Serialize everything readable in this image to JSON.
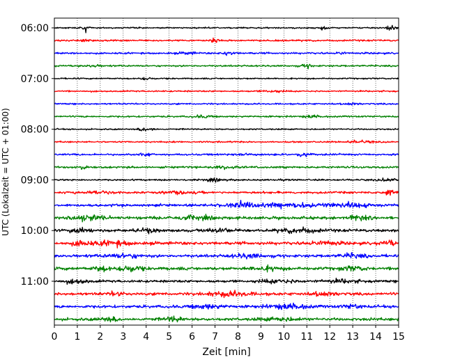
{
  "chart_data": {
    "type": "line",
    "title": "",
    "xlabel": "Zeit  [min]",
    "ylabel": "UTC (Lokalzeit = UTC + 01:00)",
    "xlim": [
      0,
      15
    ],
    "xticks": [
      0,
      1,
      2,
      3,
      4,
      5,
      6,
      7,
      8,
      9,
      10,
      11,
      12,
      13,
      14,
      15
    ],
    "x_tick_labels": [
      "0",
      "1",
      "2",
      "3",
      "4",
      "5",
      "6",
      "7",
      "8",
      "9",
      "10",
      "11",
      "12",
      "13",
      "14",
      "15"
    ],
    "row_interval_minutes": 15,
    "first_row_time": "06:00",
    "y_tick_labels": [
      {
        "row": 0,
        "label": "06:00"
      },
      {
        "row": 4,
        "label": "07:00"
      },
      {
        "row": 8,
        "label": "08:00"
      },
      {
        "row": 12,
        "label": "09:00"
      },
      {
        "row": 16,
        "label": "10:00"
      },
      {
        "row": 20,
        "label": "11:00"
      }
    ],
    "grid": {
      "x": true,
      "y": false,
      "style": "dotted"
    },
    "color_cycle": [
      "#000000",
      "#ff0000",
      "#0000ff",
      "#008000"
    ],
    "series": [
      {
        "row": 0,
        "color": "#000000",
        "base": 1.0,
        "events": [
          {
            "x": 1.35,
            "amp": 5.0,
            "w": 0.12
          },
          {
            "x": 14.6,
            "amp": 3.0,
            "w": 0.2
          },
          {
            "x": 11.6,
            "amp": 2.0,
            "w": 0.3
          }
        ]
      },
      {
        "row": 1,
        "color": "#ff0000",
        "base": 1.2,
        "events": [
          {
            "x": 7.0,
            "amp": 2.5,
            "w": 0.25
          },
          {
            "x": 1.3,
            "amp": 2.0,
            "w": 0.15
          }
        ]
      },
      {
        "row": 2,
        "color": "#0000ff",
        "base": 1.3,
        "events": [
          {
            "x": 7.6,
            "amp": 2.6,
            "w": 0.25
          },
          {
            "x": 12.5,
            "amp": 2.0,
            "w": 0.15
          },
          {
            "x": 5.8,
            "amp": 1.6,
            "w": 0.3
          }
        ]
      },
      {
        "row": 3,
        "color": "#008000",
        "base": 1.2,
        "events": [
          {
            "x": 11.0,
            "amp": 2.2,
            "w": 0.25
          },
          {
            "x": 1.7,
            "amp": 1.5,
            "w": 0.3
          }
        ]
      },
      {
        "row": 4,
        "color": "#000000",
        "base": 1.0,
        "events": [
          {
            "x": 4.0,
            "amp": 1.6,
            "w": 0.3
          }
        ]
      },
      {
        "row": 5,
        "color": "#ff0000",
        "base": 1.1,
        "events": [
          {
            "x": 9.5,
            "amp": 1.5,
            "w": 0.4
          }
        ]
      },
      {
        "row": 6,
        "color": "#0000ff",
        "base": 1.1,
        "events": [
          {
            "x": 13.0,
            "amp": 1.5,
            "w": 0.3
          }
        ]
      },
      {
        "row": 7,
        "color": "#008000",
        "base": 1.2,
        "events": [
          {
            "x": 6.5,
            "amp": 1.6,
            "w": 0.4
          },
          {
            "x": 11.2,
            "amp": 1.6,
            "w": 0.3
          }
        ]
      },
      {
        "row": 8,
        "color": "#000000",
        "base": 1.0,
        "events": [
          {
            "x": 3.9,
            "amp": 3.0,
            "w": 0.2
          },
          {
            "x": 4.3,
            "amp": 2.5,
            "w": 0.12
          }
        ]
      },
      {
        "row": 9,
        "color": "#ff0000",
        "base": 1.1,
        "events": [
          {
            "x": 13.3,
            "amp": 1.8,
            "w": 0.5
          }
        ]
      },
      {
        "row": 10,
        "color": "#0000ff",
        "base": 1.3,
        "events": [
          {
            "x": 4.0,
            "amp": 2.2,
            "w": 0.25
          },
          {
            "x": 10.8,
            "amp": 2.6,
            "w": 0.3
          },
          {
            "x": 8.5,
            "amp": 1.5,
            "w": 0.5
          }
        ]
      },
      {
        "row": 11,
        "color": "#008000",
        "base": 1.4,
        "events": [
          {
            "x": 1.2,
            "amp": 2.2,
            "w": 0.3
          },
          {
            "x": 7.5,
            "amp": 1.6,
            "w": 0.6
          }
        ]
      },
      {
        "row": 12,
        "color": "#000000",
        "base": 1.2,
        "events": [
          {
            "x": 14.5,
            "amp": 2.4,
            "w": 0.25
          },
          {
            "x": 7.0,
            "amp": 1.6,
            "w": 0.5
          }
        ]
      },
      {
        "row": 13,
        "color": "#ff0000",
        "base": 1.6,
        "events": [
          {
            "x": 14.6,
            "amp": 2.8,
            "w": 0.25
          },
          {
            "x": 5.5,
            "amp": 1.8,
            "w": 0.6
          },
          {
            "x": 2.0,
            "amp": 1.6,
            "w": 0.6
          }
        ]
      },
      {
        "row": 14,
        "color": "#0000ff",
        "base": 1.8,
        "events": [
          {
            "x": 8.2,
            "amp": 3.4,
            "w": 0.7
          },
          {
            "x": 10.5,
            "amp": 2.8,
            "w": 1.4
          },
          {
            "x": 13.0,
            "amp": 2.6,
            "w": 0.8
          }
        ]
      },
      {
        "row": 15,
        "color": "#008000",
        "base": 2.0,
        "events": [
          {
            "x": 1.4,
            "amp": 3.0,
            "w": 0.8
          },
          {
            "x": 13.2,
            "amp": 3.0,
            "w": 0.5
          },
          {
            "x": 6.0,
            "amp": 2.0,
            "w": 1.0
          }
        ]
      },
      {
        "row": 16,
        "color": "#000000",
        "base": 2.0,
        "events": [
          {
            "x": 1.2,
            "amp": 2.6,
            "w": 0.5
          },
          {
            "x": 4.1,
            "amp": 2.6,
            "w": 0.4
          },
          {
            "x": 10.7,
            "amp": 3.0,
            "w": 0.8
          },
          {
            "x": 7.2,
            "amp": 2.2,
            "w": 0.6
          }
        ]
      },
      {
        "row": 17,
        "color": "#ff0000",
        "base": 2.2,
        "events": [
          {
            "x": 1.2,
            "amp": 3.6,
            "w": 0.4
          },
          {
            "x": 2.6,
            "amp": 3.2,
            "w": 0.7
          },
          {
            "x": 14.6,
            "amp": 2.8,
            "w": 0.3
          },
          {
            "x": 11.8,
            "amp": 2.2,
            "w": 0.6
          }
        ]
      },
      {
        "row": 18,
        "color": "#0000ff",
        "base": 2.0,
        "events": [
          {
            "x": 3.0,
            "amp": 2.4,
            "w": 0.8
          },
          {
            "x": 8.4,
            "amp": 2.4,
            "w": 0.7
          },
          {
            "x": 13.0,
            "amp": 2.2,
            "w": 0.6
          }
        ]
      },
      {
        "row": 19,
        "color": "#008000",
        "base": 2.2,
        "events": [
          {
            "x": 3.3,
            "amp": 3.8,
            "w": 0.5
          },
          {
            "x": 2.1,
            "amp": 2.6,
            "w": 0.4
          },
          {
            "x": 9.2,
            "amp": 2.6,
            "w": 0.6
          },
          {
            "x": 13.0,
            "amp": 2.4,
            "w": 0.5
          }
        ]
      },
      {
        "row": 20,
        "color": "#000000",
        "base": 1.8,
        "events": [
          {
            "x": 1.0,
            "amp": 2.6,
            "w": 0.5
          },
          {
            "x": 9.8,
            "amp": 2.2,
            "w": 0.8
          },
          {
            "x": 12.5,
            "amp": 2.0,
            "w": 0.8
          }
        ]
      },
      {
        "row": 21,
        "color": "#ff0000",
        "base": 2.0,
        "events": [
          {
            "x": 7.6,
            "amp": 3.2,
            "w": 0.9
          },
          {
            "x": 2.7,
            "amp": 2.6,
            "w": 0.3
          },
          {
            "x": 11.8,
            "amp": 2.2,
            "w": 0.6
          }
        ]
      },
      {
        "row": 22,
        "color": "#0000ff",
        "base": 2.0,
        "events": [
          {
            "x": 6.6,
            "amp": 2.6,
            "w": 0.7
          },
          {
            "x": 10.2,
            "amp": 2.6,
            "w": 0.9
          },
          {
            "x": 13.0,
            "amp": 2.2,
            "w": 0.4
          }
        ]
      },
      {
        "row": 23,
        "color": "#008000",
        "base": 2.0,
        "events": [
          {
            "x": 5.2,
            "amp": 3.0,
            "w": 0.4
          },
          {
            "x": 2.4,
            "amp": 2.2,
            "w": 0.5
          },
          {
            "x": 9.8,
            "amp": 2.0,
            "w": 0.8
          }
        ]
      }
    ]
  }
}
